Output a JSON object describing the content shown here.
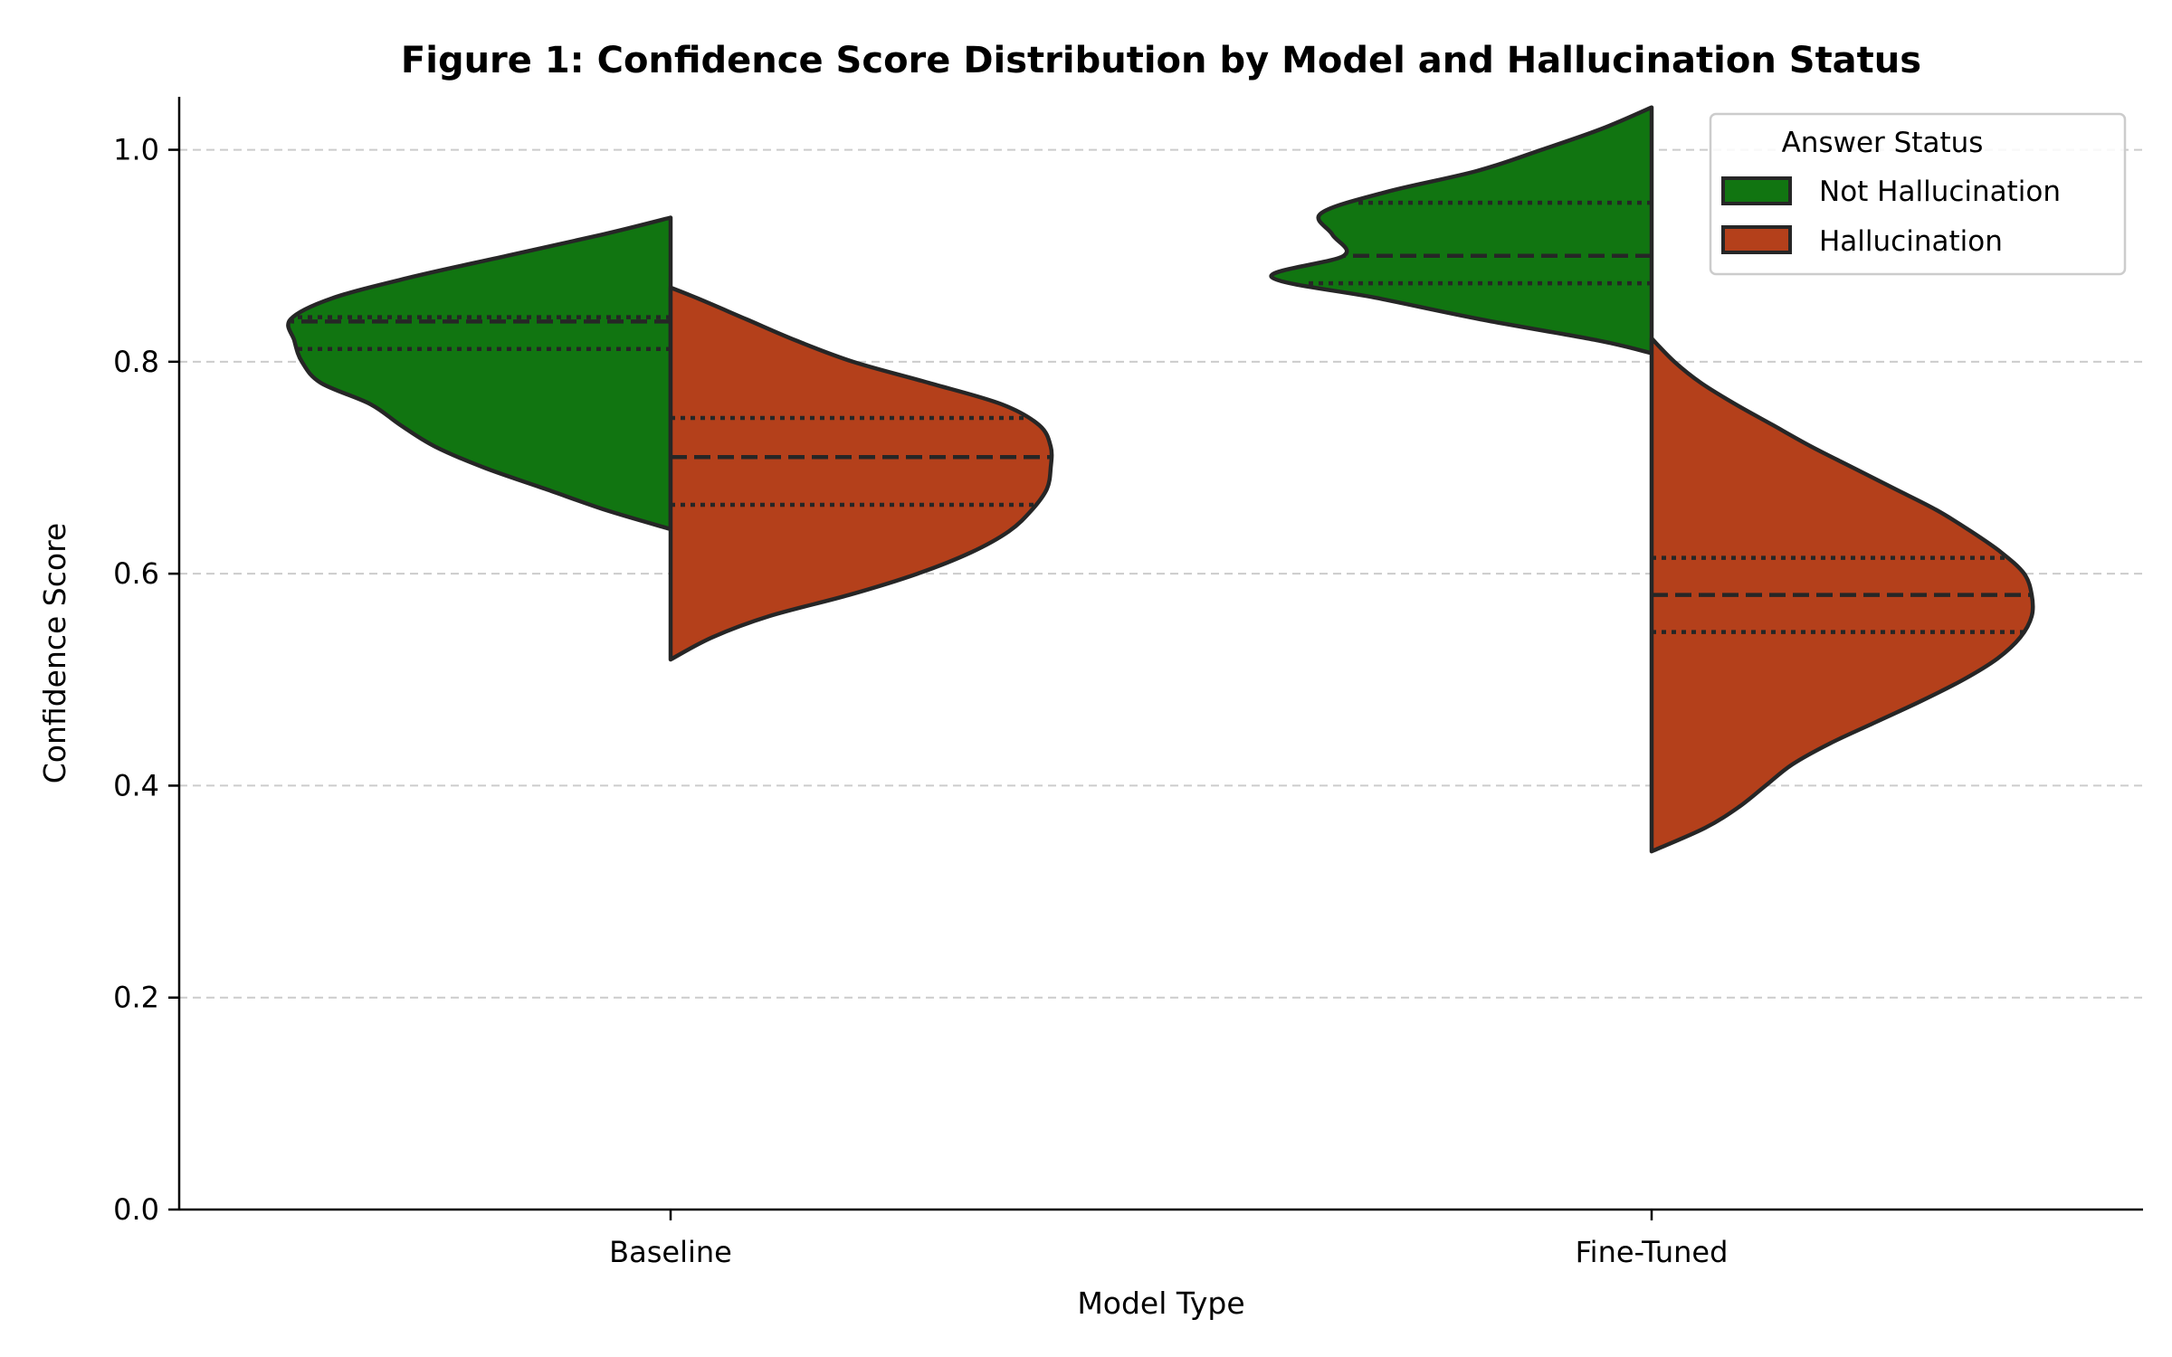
{
  "chart_data": {
    "type": "violin",
    "title": "Figure 1: Confidence Score Distribution by Model and Hallucination Status",
    "xlabel": "Model Type",
    "ylabel": "Confidence Score",
    "ylim": [
      0.0,
      1.05
    ],
    "yticks": [
      "0.0",
      "0.2",
      "0.4",
      "0.6",
      "0.8",
      "1.0"
    ],
    "grid": "y-dashed",
    "split": true,
    "categories": [
      "Baseline",
      "Fine-Tuned"
    ],
    "legend": {
      "title": "Answer Status",
      "placement": "top-right"
    },
    "series": [
      {
        "name": "Not Hallucination",
        "color": "#117511",
        "side": "left",
        "groups": [
          {
            "category": "Baseline",
            "min": 0.642,
            "max": 0.936,
            "q1": 0.812,
            "median": 0.838,
            "q3": 0.842,
            "profile": [
              [
                0.642,
                0.0
              ],
              [
                0.66,
                0.17
              ],
              [
                0.68,
                0.33
              ],
              [
                0.7,
                0.49
              ],
              [
                0.72,
                0.62
              ],
              [
                0.74,
                0.71
              ],
              [
                0.76,
                0.79
              ],
              [
                0.78,
                0.92
              ],
              [
                0.8,
                0.97
              ],
              [
                0.82,
                0.99
              ],
              [
                0.84,
                1.0
              ],
              [
                0.86,
                0.89
              ],
              [
                0.88,
                0.68
              ],
              [
                0.9,
                0.43
              ],
              [
                0.92,
                0.18
              ],
              [
                0.936,
                0.0
              ]
            ]
          },
          {
            "category": "Fine-Tuned",
            "min": 0.808,
            "max": 1.04,
            "q1": 0.874,
            "median": 0.9,
            "q3": 0.95,
            "profile": [
              [
                0.808,
                0.0
              ],
              [
                0.82,
                0.14
              ],
              [
                0.84,
                0.45
              ],
              [
                0.86,
                0.72
              ],
              [
                0.88,
                1.0
              ],
              [
                0.9,
                0.81
              ],
              [
                0.92,
                0.84
              ],
              [
                0.94,
                0.87
              ],
              [
                0.96,
                0.7
              ],
              [
                0.98,
                0.46
              ],
              [
                1.0,
                0.29
              ],
              [
                1.02,
                0.13
              ],
              [
                1.04,
                0.0
              ]
            ]
          }
        ]
      },
      {
        "name": "Hallucination",
        "color": "#b4401b",
        "side": "right",
        "groups": [
          {
            "category": "Baseline",
            "min": 0.519,
            "max": 0.87,
            "q1": 0.665,
            "median": 0.71,
            "q3": 0.747,
            "profile": [
              [
                0.519,
                0.0
              ],
              [
                0.54,
                0.11
              ],
              [
                0.56,
                0.26
              ],
              [
                0.58,
                0.47
              ],
              [
                0.6,
                0.65
              ],
              [
                0.62,
                0.79
              ],
              [
                0.64,
                0.89
              ],
              [
                0.66,
                0.95
              ],
              [
                0.68,
                0.99
              ],
              [
                0.7,
                1.0
              ],
              [
                0.72,
                1.0
              ],
              [
                0.74,
                0.97
              ],
              [
                0.76,
                0.87
              ],
              [
                0.78,
                0.68
              ],
              [
                0.8,
                0.48
              ],
              [
                0.82,
                0.33
              ],
              [
                0.84,
                0.2
              ],
              [
                0.86,
                0.07
              ],
              [
                0.87,
                0.0
              ]
            ]
          },
          {
            "category": "Fine-Tuned",
            "min": 0.338,
            "max": 0.822,
            "q1": 0.545,
            "median": 0.58,
            "q3": 0.615,
            "profile": [
              [
                0.338,
                0.0
              ],
              [
                0.36,
                0.14
              ],
              [
                0.38,
                0.23
              ],
              [
                0.4,
                0.3
              ],
              [
                0.42,
                0.37
              ],
              [
                0.44,
                0.47
              ],
              [
                0.46,
                0.59
              ],
              [
                0.48,
                0.71
              ],
              [
                0.5,
                0.82
              ],
              [
                0.52,
                0.91
              ],
              [
                0.54,
                0.97
              ],
              [
                0.56,
                1.0
              ],
              [
                0.58,
                1.0
              ],
              [
                0.6,
                0.98
              ],
              [
                0.62,
                0.92
              ],
              [
                0.64,
                0.84
              ],
              [
                0.66,
                0.75
              ],
              [
                0.68,
                0.64
              ],
              [
                0.7,
                0.53
              ],
              [
                0.72,
                0.42
              ],
              [
                0.74,
                0.32
              ],
              [
                0.76,
                0.22
              ],
              [
                0.78,
                0.13
              ],
              [
                0.8,
                0.06
              ],
              [
                0.822,
                0.0
              ]
            ]
          }
        ]
      }
    ]
  }
}
